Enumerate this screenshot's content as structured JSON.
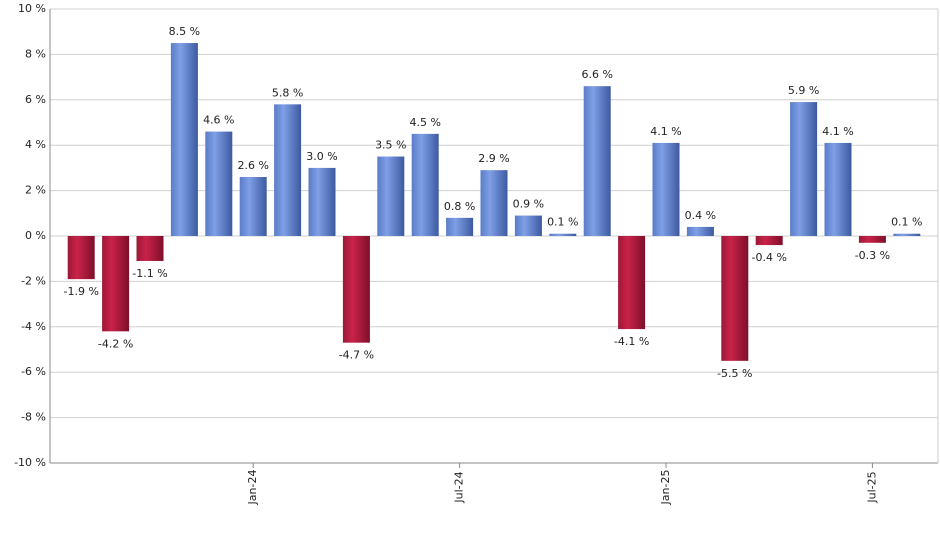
{
  "chart_data": {
    "type": "bar",
    "categories": [
      null,
      null,
      null,
      null,
      null,
      "Jan-24",
      null,
      null,
      null,
      null,
      null,
      "Jul-24",
      null,
      null,
      null,
      null,
      null,
      "Jan-25",
      null,
      null,
      null,
      null,
      null,
      "Jul-25",
      null
    ],
    "values": [
      -1.9,
      -4.2,
      -1.1,
      8.5,
      4.6,
      2.6,
      5.8,
      3.0,
      -4.7,
      3.5,
      4.5,
      0.8,
      2.9,
      0.9,
      0.1,
      6.6,
      -4.1,
      4.1,
      0.4,
      -5.5,
      -0.4,
      5.9,
      4.1,
      -0.3,
      0.1
    ],
    "value_labels": [
      "-1.9 %",
      "-4.2 %",
      "-1.1 %",
      "8.5 %",
      "4.6 %",
      "2.6 %",
      "5.8 %",
      "3.0 %",
      "-4.7 %",
      "3.5 %",
      "4.5 %",
      "0.8 %",
      "2.9 %",
      "0.9 %",
      "0.1 %",
      "6.6 %",
      "-4.1 %",
      "4.1 %",
      "0.4 %",
      "-5.5 %",
      "-0.4 %",
      "5.9 %",
      "4.1 %",
      "-0.3 %",
      "0.1 %"
    ],
    "colors": {
      "positive": "#7f9fe6",
      "negative": "#c9234a"
    },
    "ylim": [
      -10,
      10
    ],
    "yticks": [
      {
        "value": -10,
        "label": "-10 %"
      },
      {
        "value": -8,
        "label": "-8 %"
      },
      {
        "value": -6,
        "label": "-6 %"
      },
      {
        "value": -4,
        "label": "-4 %"
      },
      {
        "value": -2,
        "label": "-2 %"
      },
      {
        "value": 0,
        "label": "0 %"
      },
      {
        "value": 2,
        "label": "2 %"
      },
      {
        "value": 4,
        "label": "4 %"
      },
      {
        "value": 6,
        "label": "6 %"
      },
      {
        "value": 8,
        "label": "8 %"
      },
      {
        "value": 10,
        "label": "10 %"
      }
    ],
    "grid": true
  }
}
